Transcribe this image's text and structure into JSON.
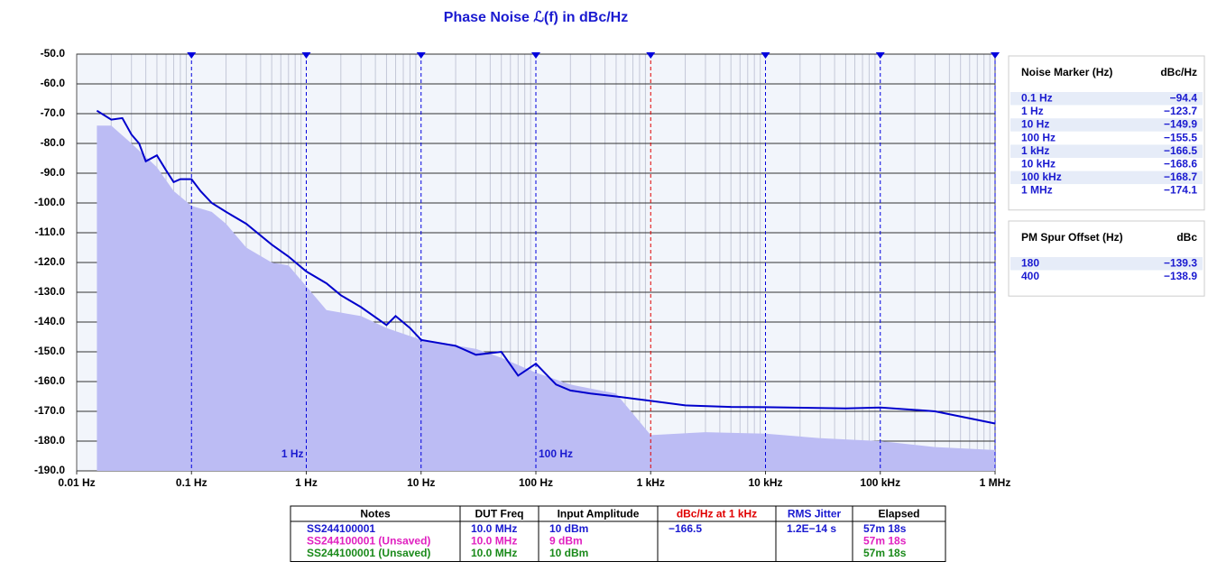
{
  "chart_data": {
    "type": "line",
    "title": "Phase Noise ℒ(f) in dBc/Hz",
    "log_x": true,
    "grid": true,
    "xlim": [
      0.01,
      1000000
    ],
    "ylim": [
      -190,
      -50
    ],
    "xticks": [
      {
        "value": 0.01,
        "label": "0.01 Hz"
      },
      {
        "value": 0.1,
        "label": "0.1 Hz"
      },
      {
        "value": 1,
        "label": "1 Hz"
      },
      {
        "value": 10,
        "label": "10 Hz"
      },
      {
        "value": 100,
        "label": "100 Hz"
      },
      {
        "value": 1000,
        "label": "1 kHz"
      },
      {
        "value": 10000,
        "label": "10 kHz"
      },
      {
        "value": 100000,
        "label": "100 kHz"
      },
      {
        "value": 1000000,
        "label": "1 MHz"
      }
    ],
    "yticks": [
      {
        "value": -50,
        "label": "-50.0"
      },
      {
        "value": -60,
        "label": "-60.0"
      },
      {
        "value": -70,
        "label": "-70.0"
      },
      {
        "value": -80,
        "label": "-80.0"
      },
      {
        "value": -90,
        "label": "-90.0"
      },
      {
        "value": -100,
        "label": "-100.0"
      },
      {
        "value": -110,
        "label": "-110.0"
      },
      {
        "value": -120,
        "label": "-120.0"
      },
      {
        "value": -130,
        "label": "-130.0"
      },
      {
        "value": -140,
        "label": "-140.0"
      },
      {
        "value": -150,
        "label": "-150.0"
      },
      {
        "value": -160,
        "label": "-160.0"
      },
      {
        "value": -170,
        "label": "-170.0"
      },
      {
        "value": -180,
        "label": "-180.0"
      },
      {
        "value": -190,
        "label": "-190.0"
      }
    ],
    "series": [
      {
        "color": "#bcbcf4",
        "fill": true,
        "x": [
          0.015,
          0.02,
          0.03,
          0.05,
          0.07,
          0.1,
          0.15,
          0.2,
          0.3,
          0.5,
          0.7,
          1,
          1.5,
          3,
          5,
          10,
          30,
          50,
          100,
          200,
          500,
          1000,
          3000,
          10000,
          30000,
          100000,
          300000,
          1000000
        ],
        "values": [
          -74,
          -74,
          -80,
          -88,
          -96,
          -101,
          -103,
          -107,
          -115,
          -120,
          -121,
          -128,
          -136,
          -138,
          -142,
          -146,
          -149,
          -152,
          -157,
          -161,
          -164,
          -178,
          -177,
          -177.5,
          -179,
          -180,
          -182,
          -183
        ]
      },
      {
        "color": "#0000cc",
        "x": [
          0.015,
          0.02,
          0.025,
          0.03,
          0.035,
          0.04,
          0.05,
          0.06,
          0.07,
          0.08,
          0.1,
          0.12,
          0.15,
          0.2,
          0.3,
          0.5,
          0.7,
          1,
          1.5,
          2,
          3,
          5,
          6,
          8,
          10,
          20,
          30,
          50,
          70,
          100,
          150,
          200,
          300,
          500,
          1000,
          2000,
          5000,
          10000,
          50000,
          100000,
          300000,
          1000000
        ],
        "values": [
          -69,
          -72,
          -71.5,
          -77,
          -80,
          -86,
          -84,
          -89,
          -93,
          -92,
          -92,
          -96,
          -100,
          -103,
          -107,
          -114,
          -118,
          -123,
          -127,
          -131,
          -135,
          -141,
          -138,
          -142,
          -146,
          -148,
          -151,
          -150,
          -158,
          -154,
          -161,
          -163,
          -164,
          -165,
          -166.5,
          -168,
          -168.5,
          -168.6,
          -169,
          -168.7,
          -170,
          -174.1
        ]
      }
    ],
    "markers": [
      0.1,
      1,
      10,
      100,
      1000,
      10000,
      100000,
      1000000
    ],
    "marker_color": "#0000dd",
    "marker_highlight": {
      "x": 1000,
      "color": "#e00000"
    },
    "annotations": [
      {
        "x": 1,
        "text": "1 Hz",
        "align": "end"
      },
      {
        "x": 100,
        "text": "100 Hz",
        "align": "start"
      }
    ]
  },
  "marker_table": {
    "header": [
      "Noise Marker (Hz)",
      "dBc/Hz"
    ],
    "rows": [
      [
        "0.1 Hz",
        "−94.4"
      ],
      [
        "1 Hz",
        "−123.7"
      ],
      [
        "10 Hz",
        "−149.9"
      ],
      [
        "100 Hz",
        "−155.5"
      ],
      [
        "1 kHz",
        "−166.5"
      ],
      [
        "10 kHz",
        "−168.6"
      ],
      [
        "100 kHz",
        "−168.7"
      ],
      [
        "1 MHz",
        "−174.1"
      ]
    ]
  },
  "spur_table": {
    "header": [
      "PM Spur Offset (Hz)",
      "dBc"
    ],
    "rows": [
      [
        "180",
        "−139.3"
      ],
      [
        "400",
        "−138.9"
      ]
    ]
  },
  "notes_table": {
    "header": [
      "Notes",
      "DUT Freq",
      "Input Amplitude",
      "dBc/Hz at 1 kHz",
      "RMS Jitter",
      "Elapsed"
    ],
    "rows": [
      [
        "SS244100001",
        "10.0 MHz",
        "10 dBm",
        "−166.5",
        "1.2E−14 s",
        "57m 18s"
      ],
      [
        "SS244100001 (Unsaved)",
        "10.0 MHz",
        "9 dBm",
        null,
        null,
        "57m 18s"
      ],
      [
        "SS244100001 (Unsaved)",
        "10.0 MHz",
        "10 dBm",
        null,
        null,
        "57m 18s"
      ]
    ],
    "row_colors": [
      "#1a1ad0",
      "#e020c0",
      "#1a8a1a"
    ],
    "header_colors": [
      "#000",
      "#000",
      "#000",
      "#e00000",
      "#1a1ad0",
      "#000"
    ]
  }
}
